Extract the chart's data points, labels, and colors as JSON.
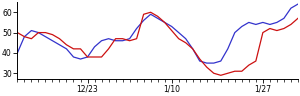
{
  "blue_y": [
    40,
    48,
    51,
    50,
    48,
    46,
    44,
    42,
    38,
    37,
    38,
    43,
    46,
    47,
    46,
    46,
    47,
    52,
    56,
    59,
    57,
    55,
    53,
    50,
    47,
    42,
    36,
    35,
    35,
    36,
    42,
    50,
    53,
    55,
    54,
    55,
    54,
    55,
    57,
    62,
    64
  ],
  "red_y": [
    50,
    48,
    47,
    50,
    50,
    49,
    47,
    44,
    42,
    42,
    38,
    38,
    38,
    42,
    47,
    47,
    46,
    47,
    59,
    60,
    58,
    55,
    51,
    47,
    45,
    42,
    37,
    33,
    30,
    29,
    30,
    31,
    31,
    34,
    36,
    50,
    52,
    51,
    52,
    54,
    57
  ],
  "xtick_positions": [
    10,
    22,
    35
  ],
  "xtick_labels": [
    "12/23",
    "1/10",
    "1/27"
  ],
  "ytick_positions": [
    30,
    40,
    50,
    60
  ],
  "ytick_labels": [
    "30",
    "40",
    "50",
    "60"
  ],
  "ylim": [
    27,
    65
  ],
  "xlim": [
    0,
    40
  ],
  "blue_color": "#3333cc",
  "red_color": "#cc1111",
  "linewidth": 0.9,
  "bg_color": "#ffffff",
  "figwidth": 3.0,
  "figheight": 0.96,
  "dpi": 100
}
